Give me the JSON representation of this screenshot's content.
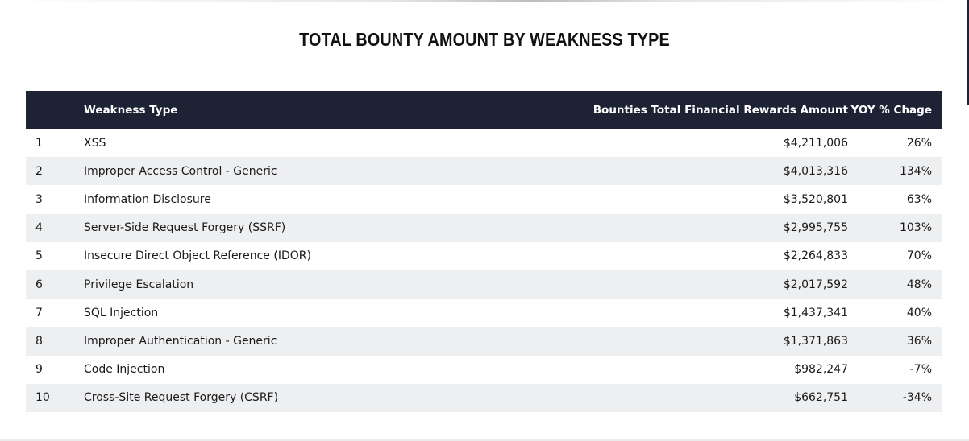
{
  "chart_data": {
    "type": "table",
    "title": "TOTAL BOUNTY AMOUNT BY WEAKNESS TYPE",
    "columns": [
      "",
      "Weakness Type",
      "Bounties Total Financial Rewards Amount",
      "YOY % Chage"
    ],
    "rows": [
      {
        "rank": "1",
        "type": "XSS",
        "amount": "$4,211,006",
        "yoy": "26%"
      },
      {
        "rank": "2",
        "type": "Improper Access Control - Generic",
        "amount": "$4,013,316",
        "yoy": "134%"
      },
      {
        "rank": "3",
        "type": "Information Disclosure",
        "amount": "$3,520,801",
        "yoy": "63%"
      },
      {
        "rank": "4",
        "type": "Server-Side Request Forgery (SSRF)",
        "amount": "$2,995,755",
        "yoy": "103%"
      },
      {
        "rank": "5",
        "type": "Insecure Direct Object Reference (IDOR)",
        "amount": "$2,264,833",
        "yoy": "70%"
      },
      {
        "rank": "6",
        "type": "Privilege Escalation",
        "amount": "$2,017,592",
        "yoy": "48%"
      },
      {
        "rank": "7",
        "type": "SQL Injection",
        "amount": "$1,437,341",
        "yoy": "40%"
      },
      {
        "rank": "8",
        "type": "Improper Authentication - Generic",
        "amount": "$1,371,863",
        "yoy": "36%"
      },
      {
        "rank": "9",
        "type": "Code Injection",
        "amount": "$982,247",
        "yoy": "-7%"
      },
      {
        "rank": "10",
        "type": "Cross-Site Request Forgery (CSRF)",
        "amount": "$662,751",
        "yoy": "-34%"
      }
    ]
  },
  "colors": {
    "header_bg": "#1e2235",
    "header_text": "#ffffff",
    "stripe": "#eeeff1"
  }
}
